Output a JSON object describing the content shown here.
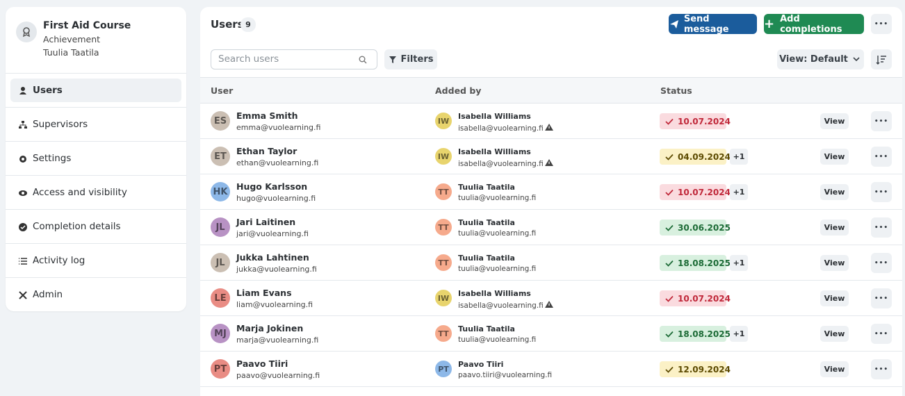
{
  "sidebar": {
    "course": {
      "title": "First Aid Course",
      "type": "Achievement",
      "owner": "Tuulia Taatila"
    },
    "nav": [
      "Users",
      "Supervisors",
      "Settings",
      "Access and visibility",
      "Completion details",
      "Activity log",
      "Admin"
    ],
    "active": 0
  },
  "header": {
    "title": "Users",
    "count": 9,
    "send": "Send message",
    "add": "Add completions",
    "search": "Search users",
    "filters": "Filters",
    "view": "View: Default"
  },
  "table": {
    "columns": [
      "User",
      "Added by",
      "Status"
    ],
    "row_action": "View",
    "rows": [
      {
        "initials": "ES",
        "color": "#cbbfb3",
        "name": "Emma Smith",
        "email": "emma@vuolearning.fi",
        "by_initials": "IW",
        "by_color": "#e8d46d",
        "by_name": "Isabella Williams",
        "by_email": "isabella@vuolearning.fi",
        "warning": true,
        "status": "10.07.2024",
        "status_color": "red"
      },
      {
        "initials": "ET",
        "color": "#cbbfb3",
        "name": "Ethan Taylor",
        "email": "ethan@vuolearning.fi",
        "by_initials": "IW",
        "by_color": "#e8d46d",
        "by_name": "Isabella Williams",
        "by_email": "isabella@vuolearning.fi",
        "warning": true,
        "status": "04.09.2024",
        "status_color": "yellow",
        "extra": "+1"
      },
      {
        "initials": "HK",
        "color": "#8db8e8",
        "name": "Hugo Karlsson",
        "email": "hugo@vuolearning.fi",
        "by_initials": "TT",
        "by_color": "#f6aa8c",
        "by_name": "Tuulia Taatila",
        "by_email": "tuulia@vuolearning.fi",
        "warning": false,
        "status": "10.07.2024",
        "status_color": "red",
        "extra": "+1"
      },
      {
        "initials": "JL",
        "color": "#b892c4",
        "name": "Jari Laitinen",
        "email": "jari@vuolearning.fi",
        "by_initials": "TT",
        "by_color": "#f6aa8c",
        "by_name": "Tuulia Taatila",
        "by_email": "tuulia@vuolearning.fi",
        "warning": false,
        "status": "30.06.2025",
        "status_color": "green"
      },
      {
        "initials": "JL",
        "color": "#cbbfb3",
        "name": "Jukka Lahtinen",
        "email": "jukka@vuolearning.fi",
        "by_initials": "TT",
        "by_color": "#f6aa8c",
        "by_name": "Tuulia Taatila",
        "by_email": "tuulia@vuolearning.fi",
        "warning": false,
        "status": "18.08.2025",
        "status_color": "green",
        "extra": "+1"
      },
      {
        "initials": "LE",
        "color": "#e98c84",
        "name": "Liam Evans",
        "email": "liam@vuolearning.fi",
        "by_initials": "IW",
        "by_color": "#e8d46d",
        "by_name": "Isabella Williams",
        "by_email": "isabella@vuolearning.fi",
        "warning": true,
        "status": "10.07.2024",
        "status_color": "red"
      },
      {
        "initials": "MJ",
        "color": "#b892c4",
        "name": "Marja Jokinen",
        "email": "marja@vuolearning.fi",
        "by_initials": "TT",
        "by_color": "#f6aa8c",
        "by_name": "Tuulia Taatila",
        "by_email": "tuulia@vuolearning.fi",
        "warning": false,
        "status": "18.08.2025",
        "status_color": "green",
        "extra": "+1"
      },
      {
        "initials": "PT",
        "color": "#e98c84",
        "name": "Paavo Tiiri",
        "email": "paavo@vuolearning.fi",
        "by_initials": "PT",
        "by_color": "#8db8e8",
        "by_name": "Paavo Tiiri",
        "by_email": "paavo.tiiri@vuolearning.fi",
        "warning": false,
        "status": "12.09.2024",
        "status_color": "yellow"
      }
    ]
  }
}
